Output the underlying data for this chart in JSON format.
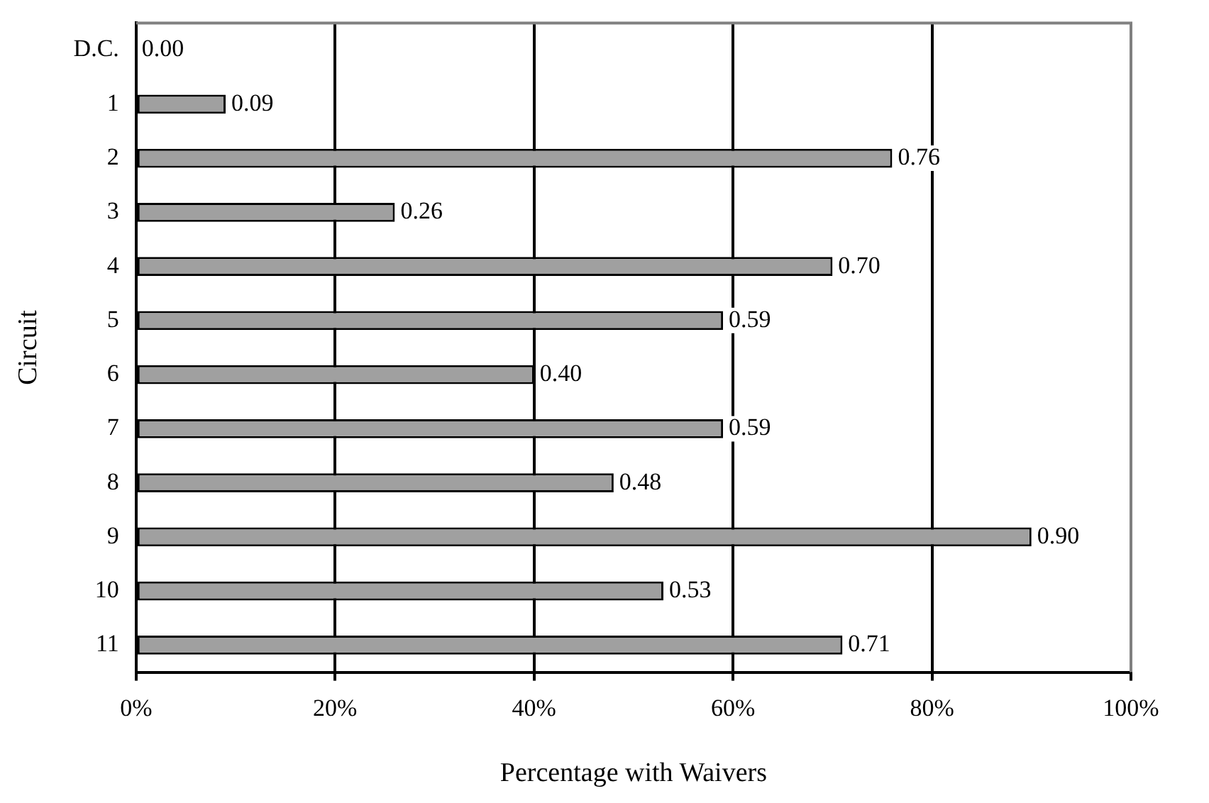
{
  "chart_data": {
    "type": "bar",
    "orientation": "horizontal",
    "xlabel": "Percentage with Waivers",
    "ylabel": "Circuit",
    "categories": [
      "D.C.",
      "1",
      "2",
      "3",
      "4",
      "5",
      "6",
      "7",
      "8",
      "9",
      "10",
      "11"
    ],
    "values": [
      0.0,
      0.09,
      0.76,
      0.26,
      0.7,
      0.59,
      0.4,
      0.59,
      0.48,
      0.9,
      0.53,
      0.71
    ],
    "color": "#a0a0a0",
    "value_labels": [
      "0.00",
      "0.09",
      "0.76",
      "0.26",
      "0.70",
      "0.59",
      "0.40",
      "0.59",
      "0.48",
      "0.90",
      "0.53",
      "0.71"
    ],
    "xlim": [
      0,
      1
    ],
    "xticks": [
      {
        "value": 0,
        "label": "0%"
      },
      {
        "value": 0.2,
        "label": "20%"
      },
      {
        "value": 0.4,
        "label": "40%"
      },
      {
        "value": 0.6,
        "label": "60%"
      },
      {
        "value": 0.8,
        "label": "80%"
      },
      {
        "value": 1,
        "label": "100%"
      }
    ],
    "grid": "x",
    "legend": false
  }
}
